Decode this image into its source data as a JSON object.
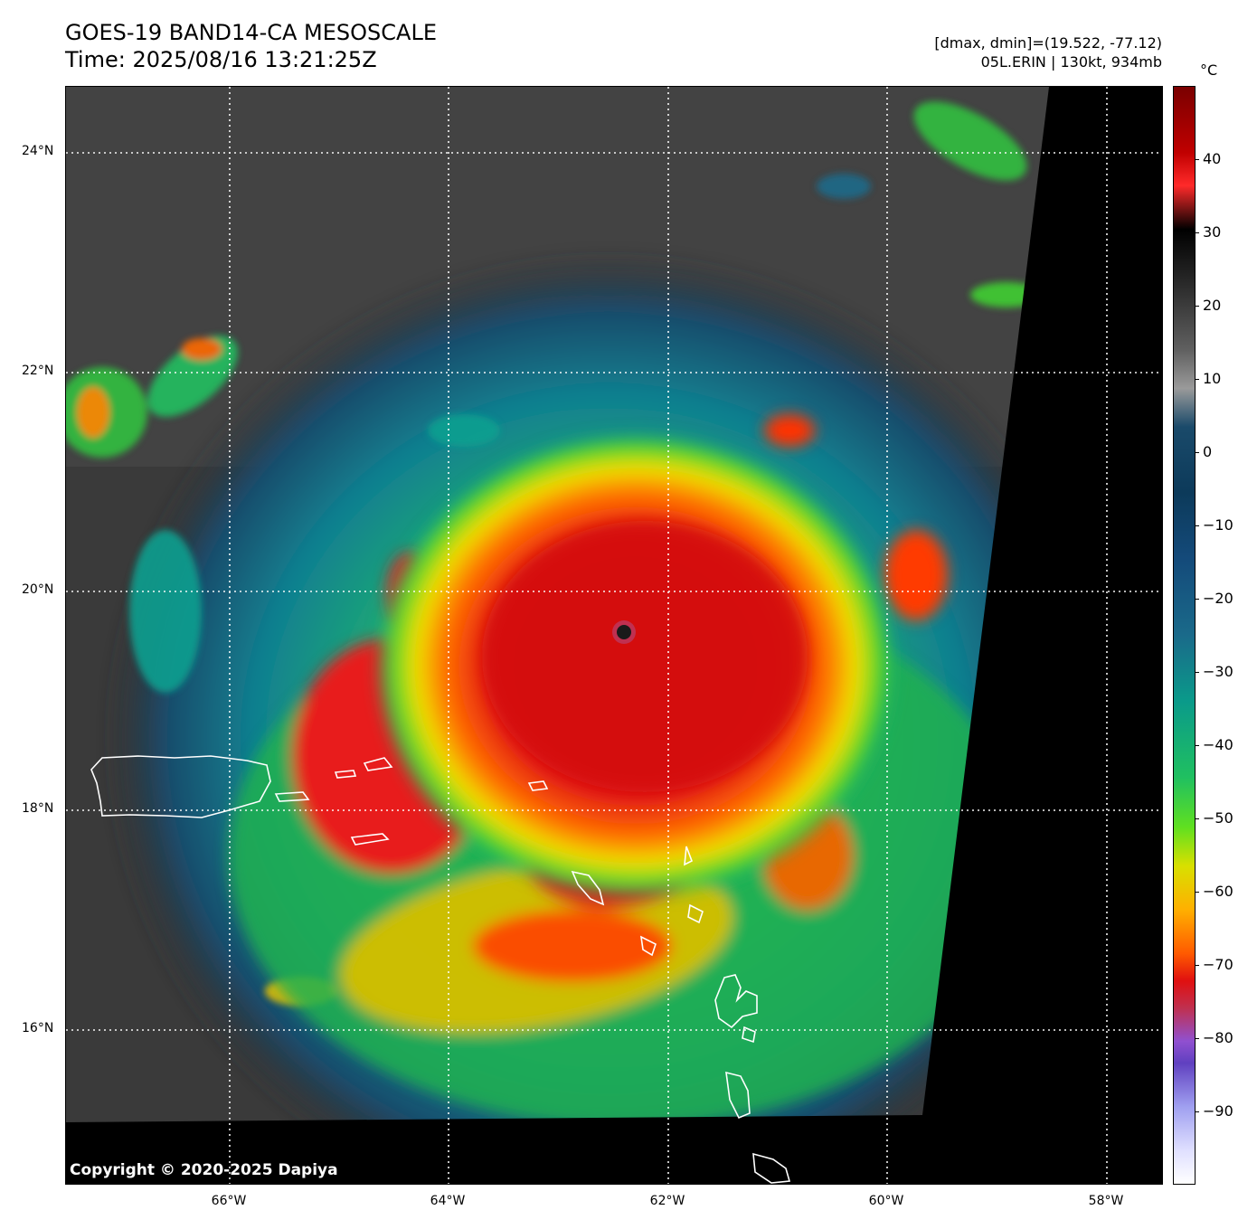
{
  "header": {
    "title_line1": "GOES-19 BAND14-CA MESOSCALE",
    "title_line2": "Time: 2025/08/16 13:21:25Z",
    "info_line1": "[dmax, dmin]=(19.522, -77.12)",
    "info_line2": "05L.ERIN | 130kt, 934mb"
  },
  "colorbar": {
    "unit": "°C",
    "ticks": [
      "40",
      "30",
      "20",
      "10",
      "0",
      "−10",
      "−20",
      "−30",
      "−40",
      "−50",
      "−60",
      "−70",
      "−80",
      "−90"
    ],
    "range": [
      -100,
      50
    ]
  },
  "axes": {
    "lat_ticks": [
      "24°N",
      "22°N",
      "20°N",
      "18°N",
      "16°N"
    ],
    "lon_ticks": [
      "66°W",
      "64°W",
      "62°W",
      "60°W",
      "58°W"
    ],
    "lon_range": [
      -67.5,
      -57.5
    ],
    "lat_range": [
      14.9,
      24.6
    ]
  },
  "footer": {
    "copyright": "Copyright © 2020-2025 Dapiya"
  },
  "colors": {
    "eyewall": "#e01010",
    "eye": "#1a1a1a",
    "outline": "#ffffff",
    "no_data": "#000000"
  }
}
